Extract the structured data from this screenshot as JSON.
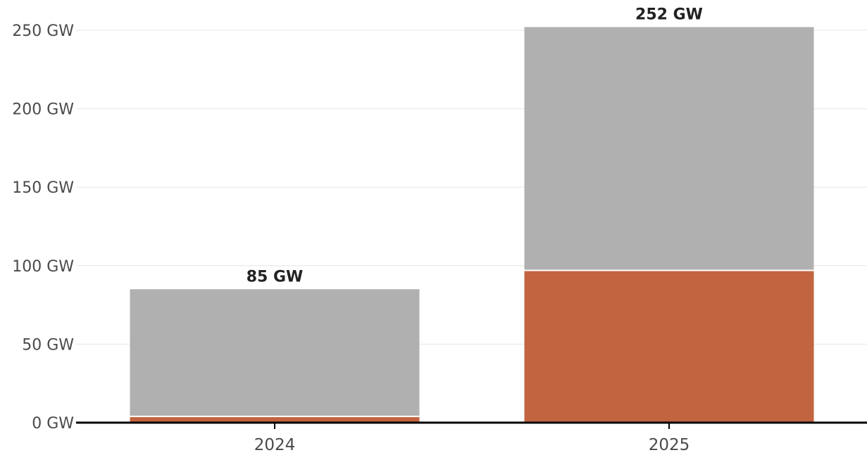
{
  "chart_data": {
    "type": "bar",
    "stacked": true,
    "title": "",
    "xlabel": "",
    "ylabel": "",
    "ylim": [
      0,
      250
    ],
    "y_ticks": [
      0,
      50,
      100,
      150,
      200,
      250
    ],
    "y_tick_labels": [
      "0 GW",
      "50 GW",
      "100 GW",
      "150 GW",
      "200 GW",
      "250 GW"
    ],
    "unit": "GW",
    "categories": [
      "2024",
      "2025"
    ],
    "series": [
      {
        "values": [
          4,
          97
        ],
        "color": "#c2643f"
      },
      {
        "values": [
          81,
          155
        ],
        "color": "#b0b0b0"
      }
    ],
    "totals": [
      85,
      252
    ],
    "total_labels": [
      "85 GW",
      "252 GW"
    ],
    "grid": true,
    "legend": "none"
  }
}
